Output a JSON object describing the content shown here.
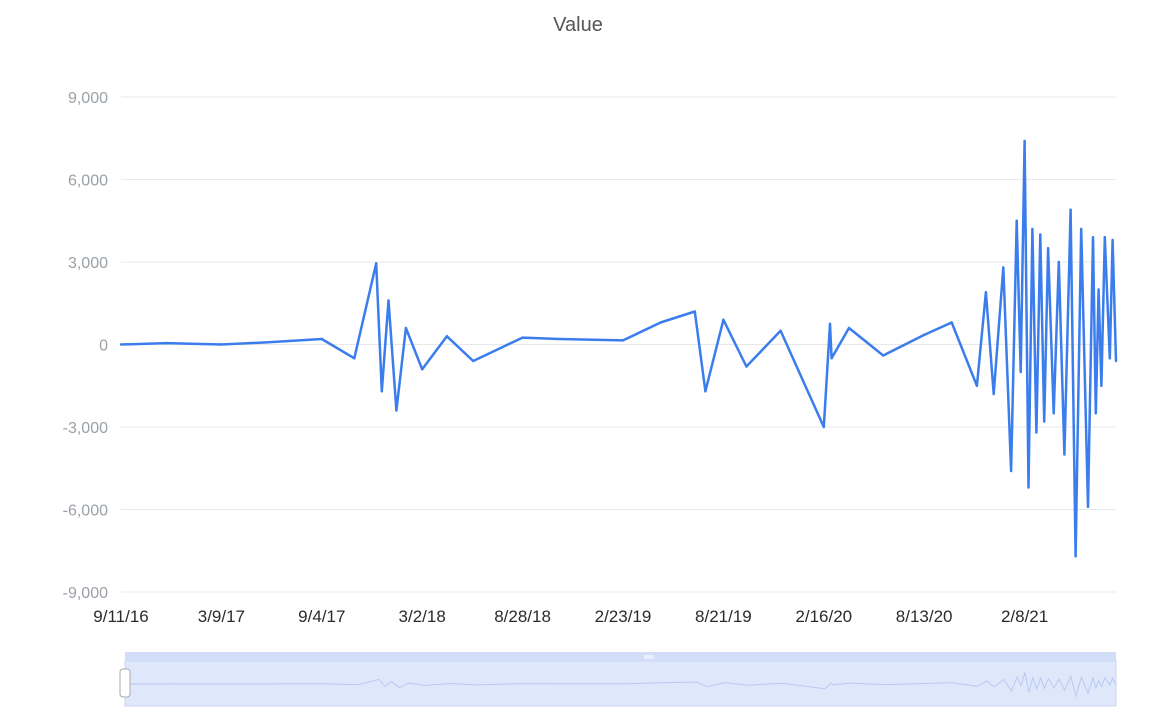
{
  "chart_data": {
    "type": "line",
    "title": "Value",
    "xlabel": "",
    "ylabel": "",
    "x_range": [
      "9/11/16",
      "7/21/21"
    ],
    "ylim": [
      -9000,
      9000
    ],
    "yticks": [
      9000,
      6000,
      3000,
      0,
      -3000,
      -6000,
      -9000
    ],
    "ytick_labels": [
      "9,000",
      "6,000",
      "3,000",
      "0",
      "-3,000",
      "-6,000",
      "-9,000"
    ],
    "xtick_labels": [
      "9/11/16",
      "3/9/17",
      "9/4/17",
      "3/2/18",
      "8/28/18",
      "2/23/19",
      "8/21/19",
      "2/16/20",
      "8/13/20",
      "2/8/21"
    ],
    "grid": true,
    "legend": "none",
    "line_color": "#3b7ded",
    "x": [
      "9/11/16",
      "12/1/16",
      "3/9/17",
      "6/1/17",
      "9/4/17",
      "11/1/17",
      "12/10/17",
      "12/20/17",
      "1/1/18",
      "1/15/18",
      "2/1/18",
      "3/2/18",
      "4/15/18",
      "6/1/18",
      "8/28/18",
      "11/1/18",
      "2/23/19",
      "5/1/19",
      "7/1/19",
      "7/20/19",
      "8/21/19",
      "10/1/19",
      "12/1/19",
      "2/16/20",
      "2/27/20",
      "3/1/20",
      "4/1/20",
      "6/1/20",
      "8/13/20",
      "10/1/20",
      "11/15/20",
      "12/1/20",
      "12/15/20",
      "1/1/21",
      "1/15/21",
      "1/25/21",
      "2/1/21",
      "2/8/21",
      "2/15/21",
      "2/22/21",
      "3/1/21",
      "3/8/21",
      "3/15/21",
      "3/22/21",
      "4/1/21",
      "4/10/21",
      "4/20/21",
      "5/1/21",
      "5/10/21",
      "5/20/21",
      "6/1/21",
      "6/10/21",
      "6/15/21",
      "6/20/21",
      "6/25/21",
      "7/1/21",
      "7/10/21",
      "7/15/21",
      "7/21/21"
    ],
    "series": [
      {
        "values": [
          0,
          50,
          0,
          80,
          200,
          -500,
          2950,
          -1700,
          1600,
          -2400,
          600,
          -900,
          300,
          -600,
          250,
          200,
          150,
          800,
          1200,
          -1700,
          900,
          -800,
          500,
          -3000,
          750,
          -500,
          600,
          -400,
          350,
          800,
          -1500,
          1900,
          -1800,
          2800,
          -4600,
          4500,
          -1000,
          7400,
          -5200,
          4200,
          -3200,
          4000,
          -2800,
          3500,
          -2500,
          3000,
          -4000,
          4900,
          -7700,
          4200,
          -5900,
          3900,
          -2500,
          2000,
          -1500,
          3900,
          -500,
          3800,
          -600
        ]
      }
    ]
  }
}
